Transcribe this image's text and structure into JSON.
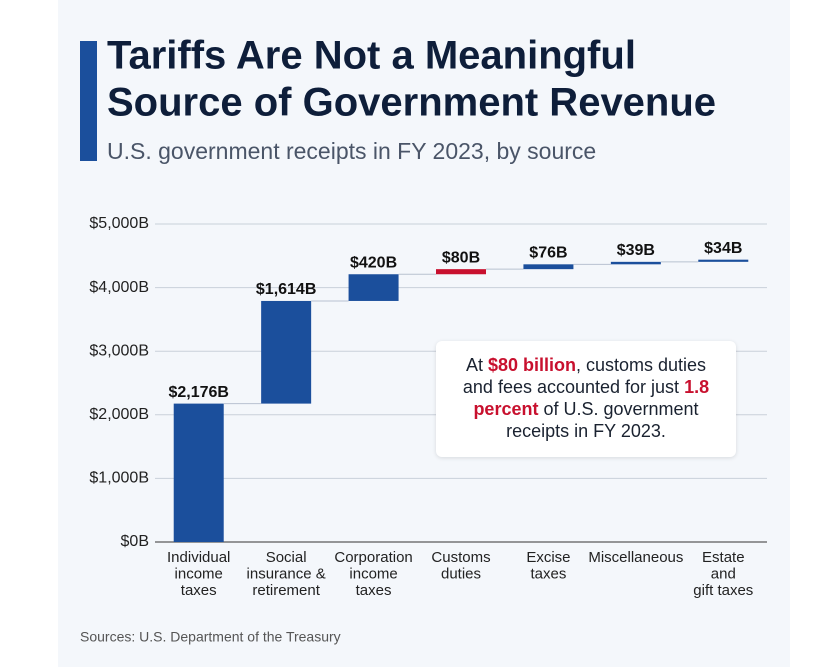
{
  "chart_data": {
    "type": "waterfall",
    "title": [
      "Tariffs Are Not a Meaningful",
      "Source of Government Revenue"
    ],
    "subtitle": "U.S. government receipts in FY 2023, by source",
    "categories": [
      [
        "Individual",
        "income",
        "taxes"
      ],
      [
        "Social",
        "insurance &",
        "retirement"
      ],
      [
        "Corporation",
        "income",
        "taxes"
      ],
      [
        "Customs",
        "duties"
      ],
      [
        "Excise",
        "taxes"
      ],
      [
        "Miscellaneous"
      ],
      [
        "Estate",
        "and",
        "gift taxes"
      ]
    ],
    "values": [
      2176,
      1614,
      420,
      80,
      76,
      39,
      34
    ],
    "value_labels": [
      "$2,176B",
      "$1,614B",
      "$420B",
      "$80B",
      "$76B",
      "$39B",
      "$34B"
    ],
    "colors": [
      "#1b4f9c",
      "#1b4f9c",
      "#1b4f9c",
      "#c8102e",
      "#1b4f9c",
      "#1b4f9c",
      "#1b4f9c"
    ],
    "ylim": [
      0,
      5000
    ],
    "yticks": [
      {
        "value": 0,
        "label": "$0B"
      },
      {
        "value": 1000,
        "label": "$1,000B"
      },
      {
        "value": 2000,
        "label": "$2,000B"
      },
      {
        "value": 3000,
        "label": "$3,000B"
      },
      {
        "value": 4000,
        "label": "$4,000B"
      },
      {
        "value": 5000,
        "label": "$5,000B"
      }
    ],
    "grid": true,
    "annotation": [
      {
        "text": "At ",
        "highlight": false
      },
      {
        "text": "$80 billion",
        "highlight": true
      },
      {
        "text": ", customs duties and fees accounted for just ",
        "highlight": false
      },
      {
        "text": "1.8 percent",
        "highlight": true
      },
      {
        "text": " of U.S. government receipts in FY 2023.",
        "highlight": false
      }
    ],
    "source": "Sources: U.S. Department of the Treasury"
  }
}
